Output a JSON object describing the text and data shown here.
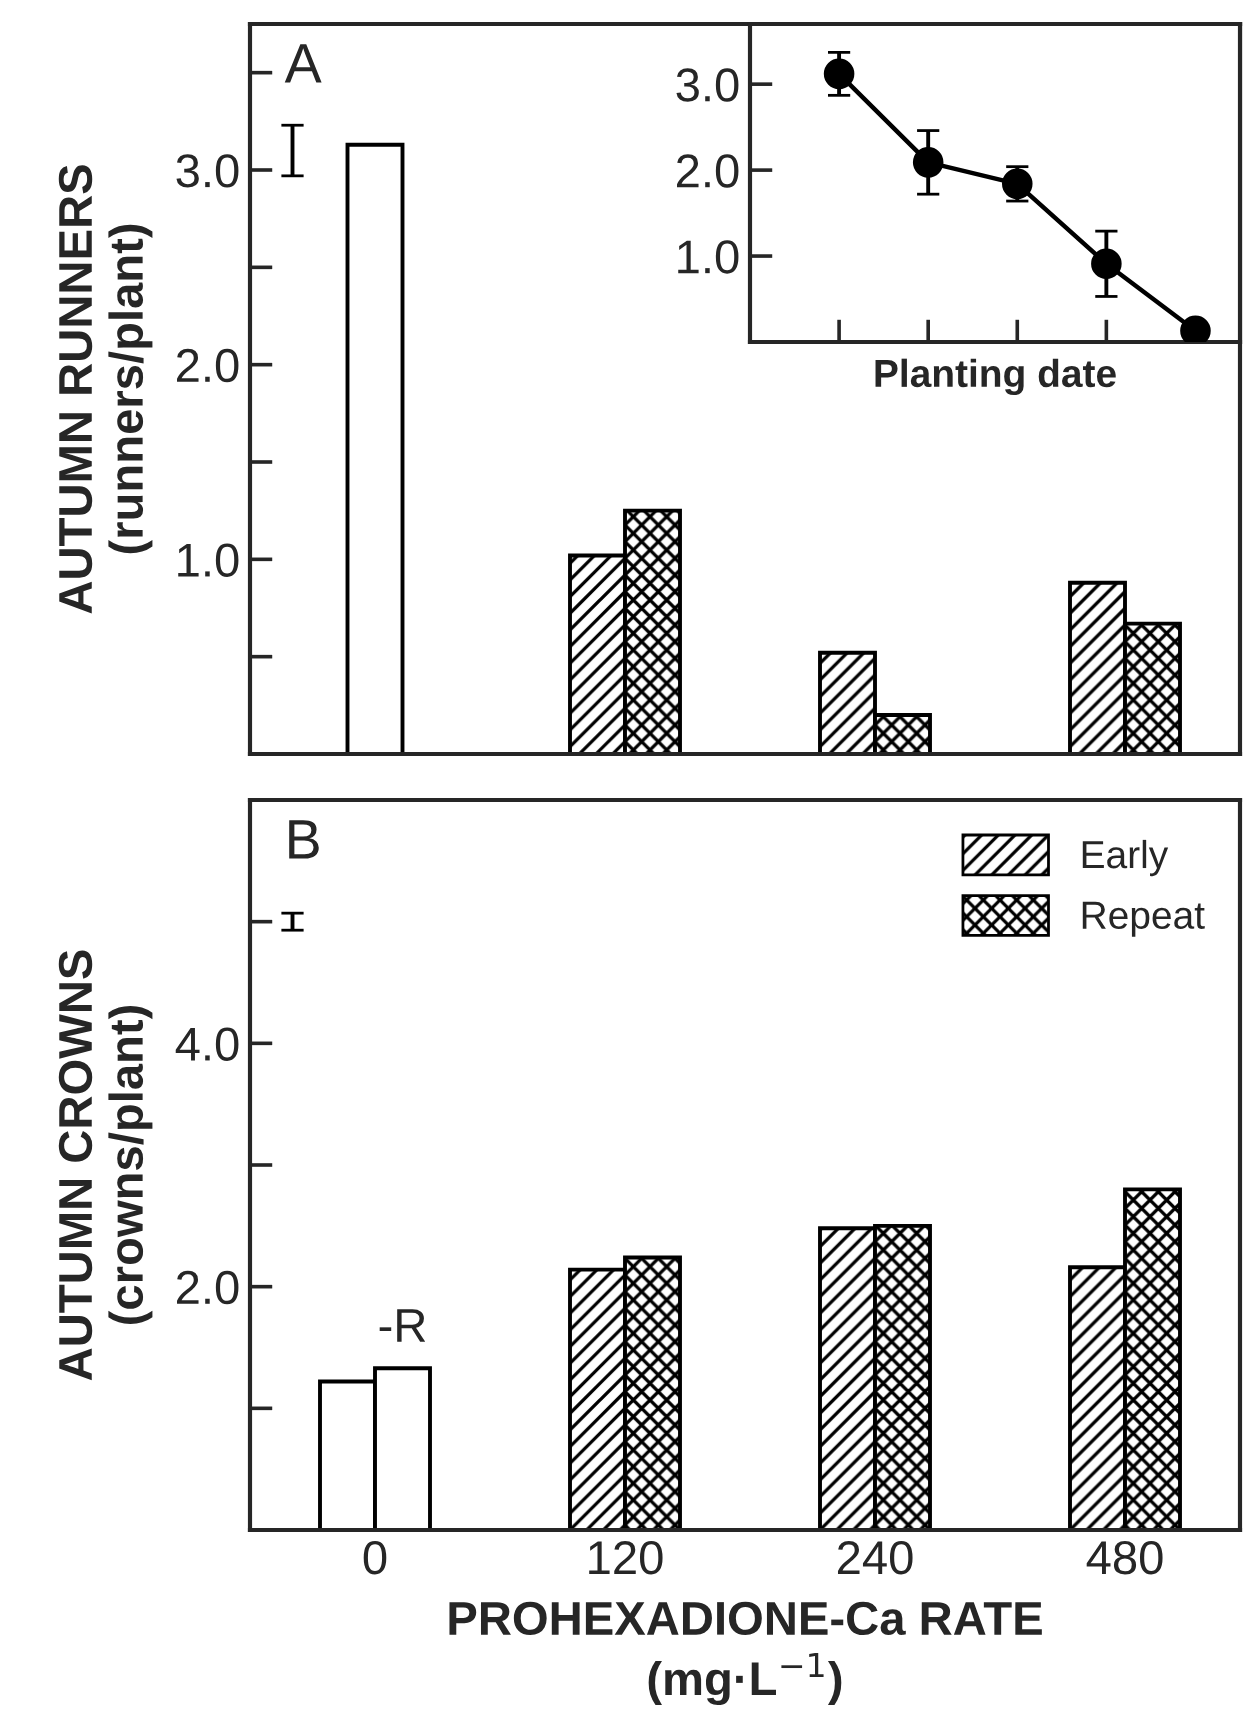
{
  "chart_data": [
    {
      "type": "bar",
      "ylabel": "AUTUMN RUNNERS\n(runners/plant)",
      "categories": [
        "0",
        "120",
        "240",
        "480"
      ],
      "series": [
        {
          "color": "#ffffff",
          "values": [
            3.13,
            null,
            null,
            null
          ]
        },
        {
          "color": "#000000",
          "values": [
            null,
            1.02,
            0.52,
            0.88
          ]
        },
        {
          "color": "#000000",
          "values": [
            null,
            1.25,
            0.2,
            0.67
          ]
        }
      ],
      "ylim": [
        0,
        3.75
      ],
      "yticks": [
        {
          "value": 0.5,
          "label": null
        },
        {
          "value": 1,
          "label": "1.0"
        },
        {
          "value": 1.5,
          "label": null
        },
        {
          "value": 2,
          "label": "2.0"
        },
        {
          "value": 2.5,
          "label": null
        },
        {
          "value": 3,
          "label": "3.0"
        },
        {
          "value": 3.5,
          "label": null
        }
      ],
      "tick_labels": "y",
      "legend": false,
      "grid": false,
      "annotations": [
        "A"
      ]
    },
    {
      "type": "bar",
      "ylabel": "AUTUMN CROWNS\n(crowns/plant)",
      "xlabel": "PROHEXADIONE-Ca RATE\n(mg·L$^{−1}$)",
      "categories": [
        "0",
        "120",
        "240",
        "480"
      ],
      "series": [
        {
          "color": "#ffffff",
          "values": [
            1.22,
            null,
            null,
            null
          ]
        },
        {
          "color": "#ffffff",
          "values": [
            1.33,
            null,
            null,
            null
          ]
        },
        {
          "name": "Early",
          "color": "#000000",
          "values": [
            null,
            2.14,
            2.48,
            2.16
          ]
        },
        {
          "name": "Repeat",
          "color": "#000000",
          "values": [
            null,
            2.24,
            2.5,
            2.8
          ]
        }
      ],
      "ylim": [
        0,
        6
      ],
      "yticks": [
        {
          "value": 1,
          "label": null
        },
        {
          "value": 2,
          "label": "2.0"
        },
        {
          "value": 3,
          "label": null
        },
        {
          "value": 4,
          "label": "4.0"
        },
        {
          "value": 5,
          "label": null
        }
      ],
      "legend": "top right",
      "grid": false,
      "annotations": [
        "B",
        {
          "text": "-R",
          "x": "0",
          "y": 1.33
        }
      ]
    },
    {
      "type": "line",
      "xlabel": "Planting date",
      "categories": [
        null,
        null,
        null,
        null,
        null
      ],
      "series": [
        {
          "color": "#000000",
          "values": [
            3.12,
            2.09,
            1.84,
            0.91,
            0.13
          ],
          "errors": [
            0.25,
            0.37,
            0.2,
            0.38,
            null
          ]
        }
      ],
      "ylim": [
        0,
        3.7
      ],
      "yticks": [
        {
          "value": 0,
          "label": null
        },
        {
          "value": 1,
          "label": "1.0"
        },
        {
          "value": 2,
          "label": "2.0"
        },
        {
          "value": 3,
          "label": "3.0"
        }
      ],
      "marker": "circle",
      "line_style": "solid",
      "grid": false,
      "tick_labels": "y"
    }
  ]
}
